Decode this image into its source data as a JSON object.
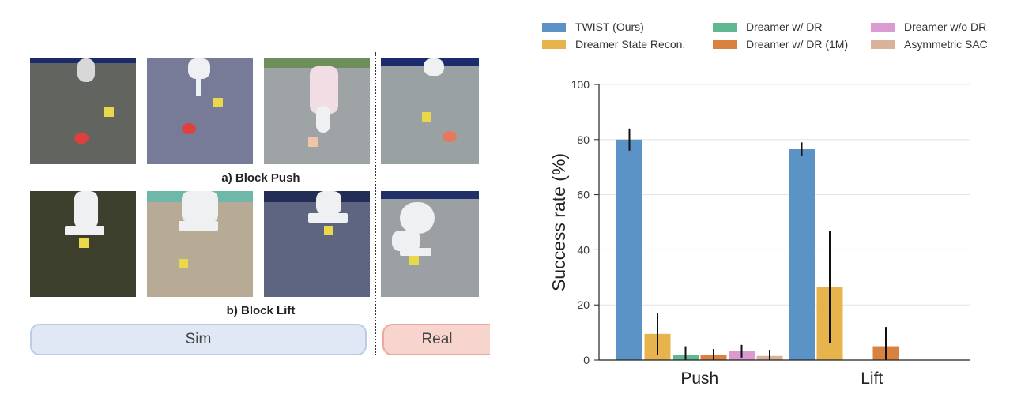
{
  "figure": {
    "sim_label": "Sim",
    "real_label": "Real",
    "row_a_title": "a) Block Push",
    "row_b_title": "b) Block Lift"
  },
  "chart_data": {
    "type": "bar",
    "categories": [
      "Push",
      "Lift"
    ],
    "ylabel": "Success rate (%)",
    "xlabel": "",
    "ylim": [
      0,
      100
    ],
    "yticks": [
      0,
      20,
      40,
      60,
      80,
      100
    ],
    "grid": "horizontal",
    "legend_placement": "top",
    "series": [
      {
        "name": "TWIST (Ours)",
        "color": "#5b93c6",
        "values": [
          80,
          76.5
        ],
        "err": [
          4,
          2.5
        ]
      },
      {
        "name": "Dreamer State Recon.",
        "color": "#e6b34c",
        "values": [
          9.5,
          26.5
        ],
        "err": [
          7.5,
          20.5
        ]
      },
      {
        "name": "Dreamer w/ DR",
        "color": "#5fb891",
        "values": [
          2,
          0
        ],
        "err": [
          3,
          0
        ]
      },
      {
        "name": "Dreamer w/ DR (1M)",
        "color": "#d9823f",
        "values": [
          2,
          5
        ],
        "err": [
          2,
          7
        ]
      },
      {
        "name": "Dreamer w/o DR",
        "color": "#d99bd0",
        "values": [
          3.2,
          0
        ],
        "err": [
          2.3,
          0
        ]
      },
      {
        "name": "Asymmetric SAC",
        "color": "#d8b39a",
        "values": [
          1.5,
          0
        ],
        "err": [
          2.2,
          0
        ]
      }
    ]
  }
}
